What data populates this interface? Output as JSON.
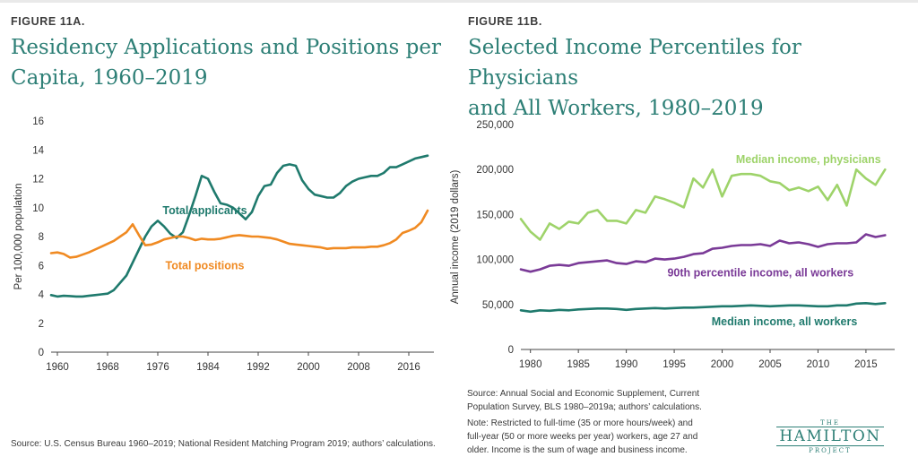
{
  "left": {
    "figure_label": "FIGURE 11A.",
    "title_line1": "Residency Applications and Positions per",
    "title_line2": "Capita, 1960–2019",
    "source": "Source: U.S. Census Bureau 1960–2019; National Resident Matching Program 2019; authors’ calculations."
  },
  "right": {
    "figure_label": "FIGURE 11B.",
    "title_line1": "Selected Income Percentiles for Physicians",
    "title_line2": "and All Workers, 1980–2019",
    "source_line1": "Source: Annual Social and Economic Supplement, Current",
    "source_line2": "Population Survey, BLS 1980–2019a; authors’ calculations.",
    "note_line1": "Note: Restricted to full-time (35 or more hours/week) and",
    "note_line2": "full-year (50 or more weeks per year) workers, age 27 and",
    "note_line3": "older. Income is the sum of wage and business income."
  },
  "logo": {
    "the": "THE",
    "name": "HAMILTON",
    "project": "PROJECT"
  },
  "chart_data": [
    {
      "type": "line",
      "title": "Residency Applications and Positions per Capita, 1960–2019",
      "xlabel": "",
      "ylabel": "Per 100,000 population",
      "xlim": [
        1959,
        2020
      ],
      "ylim": [
        0,
        16
      ],
      "xticks": [
        1960,
        1968,
        1976,
        1984,
        1992,
        2000,
        2008,
        2016
      ],
      "yticks": [
        0,
        2,
        4,
        6,
        8,
        10,
        12,
        14,
        16
      ],
      "ytick_labels": [
        "0",
        "2",
        "4",
        "6",
        "8",
        "10",
        "12",
        "14",
        "16"
      ],
      "grid": false,
      "series": [
        {
          "name": "Total applicants",
          "color": "#1f7a6d",
          "label_x": 1983.5,
          "label_y": 9.8,
          "x": [
            1959,
            1960,
            1961,
            1962,
            1963,
            1964,
            1965,
            1966,
            1967,
            1968,
            1969,
            1970,
            1971,
            1972,
            1973,
            1974,
            1975,
            1976,
            1977,
            1978,
            1979,
            1980,
            1981,
            1982,
            1983,
            1984,
            1985,
            1986,
            1987,
            1988,
            1989,
            1990,
            1991,
            1992,
            1993,
            1994,
            1995,
            1996,
            1997,
            1998,
            1999,
            2000,
            2001,
            2002,
            2003,
            2004,
            2005,
            2006,
            2007,
            2008,
            2009,
            2010,
            2011,
            2012,
            2013,
            2014,
            2015,
            2016,
            2017,
            2018,
            2019
          ],
          "values": [
            3.95,
            3.85,
            3.9,
            3.88,
            3.85,
            3.85,
            3.9,
            3.95,
            4.0,
            4.05,
            4.3,
            4.8,
            5.3,
            6.2,
            7.1,
            8.0,
            8.7,
            9.1,
            8.7,
            8.2,
            7.9,
            8.3,
            9.5,
            10.8,
            12.2,
            12.0,
            11.1,
            10.3,
            10.2,
            10.0,
            9.6,
            9.2,
            9.7,
            10.8,
            11.5,
            11.6,
            12.4,
            12.9,
            13.0,
            12.9,
            11.9,
            11.3,
            10.9,
            10.8,
            10.7,
            10.7,
            11.0,
            11.5,
            11.8,
            12.0,
            12.1,
            12.2,
            12.2,
            12.4,
            12.8,
            12.8,
            13.0,
            13.2,
            13.4,
            13.5,
            13.6
          ]
        },
        {
          "name": "Total positions",
          "color": "#f08a22",
          "label_x": 1983.5,
          "label_y": 6.0,
          "x": [
            1959,
            1960,
            1961,
            1962,
            1963,
            1964,
            1965,
            1966,
            1967,
            1968,
            1969,
            1970,
            1971,
            1972,
            1973,
            1974,
            1975,
            1976,
            1977,
            1978,
            1979,
            1980,
            1981,
            1982,
            1983,
            1984,
            1985,
            1986,
            1987,
            1988,
            1989,
            1990,
            1991,
            1992,
            1993,
            1994,
            1995,
            1996,
            1997,
            1998,
            1999,
            2000,
            2001,
            2002,
            2003,
            2004,
            2005,
            2006,
            2007,
            2008,
            2009,
            2010,
            2011,
            2012,
            2013,
            2014,
            2015,
            2016,
            2017,
            2018,
            2019
          ],
          "values": [
            6.85,
            6.9,
            6.8,
            6.55,
            6.6,
            6.75,
            6.9,
            7.1,
            7.3,
            7.5,
            7.7,
            8.0,
            8.3,
            8.85,
            8.1,
            7.4,
            7.45,
            7.6,
            7.8,
            7.9,
            8.0,
            8.0,
            7.9,
            7.75,
            7.85,
            7.8,
            7.8,
            7.85,
            7.95,
            8.05,
            8.1,
            8.05,
            8.0,
            8.0,
            7.95,
            7.9,
            7.8,
            7.65,
            7.5,
            7.45,
            7.4,
            7.35,
            7.3,
            7.25,
            7.15,
            7.2,
            7.2,
            7.2,
            7.25,
            7.25,
            7.25,
            7.3,
            7.3,
            7.4,
            7.55,
            7.8,
            8.25,
            8.4,
            8.6,
            9.0,
            9.8
          ]
        }
      ]
    },
    {
      "type": "line",
      "title": "Selected Income Percentiles for Physicians and All Workers, 1980–2019",
      "xlabel": "",
      "ylabel": "Annual income (2019 dollars)",
      "xlim": [
        1979,
        2018
      ],
      "ylim": [
        0,
        250000
      ],
      "xticks": [
        1980,
        1985,
        1990,
        1995,
        2000,
        2005,
        2010,
        2015
      ],
      "yticks": [
        0,
        50000,
        100000,
        150000,
        200000,
        250000
      ],
      "ytick_labels": [
        "0",
        "50,000",
        "100,000",
        "150,000",
        "200,000",
        "250,000"
      ],
      "grid": false,
      "series": [
        {
          "name": "Median income, physicians",
          "color": "#9ed36a",
          "label_x": 2009,
          "label_y": 211000,
          "x": [
            1979,
            1980,
            1981,
            1982,
            1983,
            1984,
            1985,
            1986,
            1987,
            1988,
            1989,
            1990,
            1991,
            1992,
            1993,
            1994,
            1995,
            1996,
            1997,
            1998,
            1999,
            2000,
            2001,
            2002,
            2003,
            2004,
            2005,
            2006,
            2007,
            2008,
            2009,
            2010,
            2011,
            2012,
            2013,
            2014,
            2015,
            2016,
            2017
          ],
          "values": [
            145000,
            131000,
            122000,
            140000,
            134000,
            142000,
            140000,
            152000,
            155000,
            143000,
            143000,
            140000,
            155000,
            152000,
            170000,
            167000,
            163000,
            158000,
            190000,
            180000,
            200000,
            170000,
            193000,
            195000,
            195000,
            193000,
            187000,
            185000,
            177000,
            180000,
            176000,
            181000,
            166000,
            183000,
            160000,
            200000,
            190000,
            183000,
            200000
          ]
        },
        {
          "name": "90th percentile income, all workers",
          "color": "#7a3a97",
          "label_x": 2004,
          "label_y": 85000,
          "x": [
            1979,
            1980,
            1981,
            1982,
            1983,
            1984,
            1985,
            1986,
            1987,
            1988,
            1989,
            1990,
            1991,
            1992,
            1993,
            1994,
            1995,
            1996,
            1997,
            1998,
            1999,
            2000,
            2001,
            2002,
            2003,
            2004,
            2005,
            2006,
            2007,
            2008,
            2009,
            2010,
            2011,
            2012,
            2013,
            2014,
            2015,
            2016,
            2017
          ],
          "values": [
            89000,
            86500,
            89000,
            93000,
            94000,
            93000,
            96000,
            97000,
            98000,
            99000,
            96000,
            95000,
            98000,
            97000,
            101000,
            100000,
            101000,
            103000,
            106000,
            107000,
            112000,
            113000,
            115000,
            116000,
            116000,
            117000,
            115000,
            121000,
            118000,
            119000,
            117000,
            114000,
            117000,
            118000,
            118000,
            119000,
            128000,
            125000,
            127000
          ]
        },
        {
          "name": "Median income, all workers",
          "color": "#1f7a6d",
          "label_x": 2006.5,
          "label_y": 31000,
          "x": [
            1979,
            1980,
            1981,
            1982,
            1983,
            1984,
            1985,
            1986,
            1987,
            1988,
            1989,
            1990,
            1991,
            1992,
            1993,
            1994,
            1995,
            1996,
            1997,
            1998,
            1999,
            2000,
            2001,
            2002,
            2003,
            2004,
            2005,
            2006,
            2007,
            2008,
            2009,
            2010,
            2011,
            2012,
            2013,
            2014,
            2015,
            2016,
            2017
          ],
          "values": [
            43500,
            42000,
            43500,
            43000,
            44000,
            43500,
            44500,
            45000,
            45500,
            45500,
            45000,
            44000,
            45000,
            45500,
            46000,
            45500,
            46000,
            46500,
            46500,
            47000,
            47500,
            48000,
            48000,
            48500,
            49000,
            48500,
            48000,
            48500,
            49000,
            49000,
            48500,
            48000,
            48000,
            49000,
            49000,
            51000,
            51500,
            50500,
            51500
          ]
        }
      ]
    }
  ]
}
